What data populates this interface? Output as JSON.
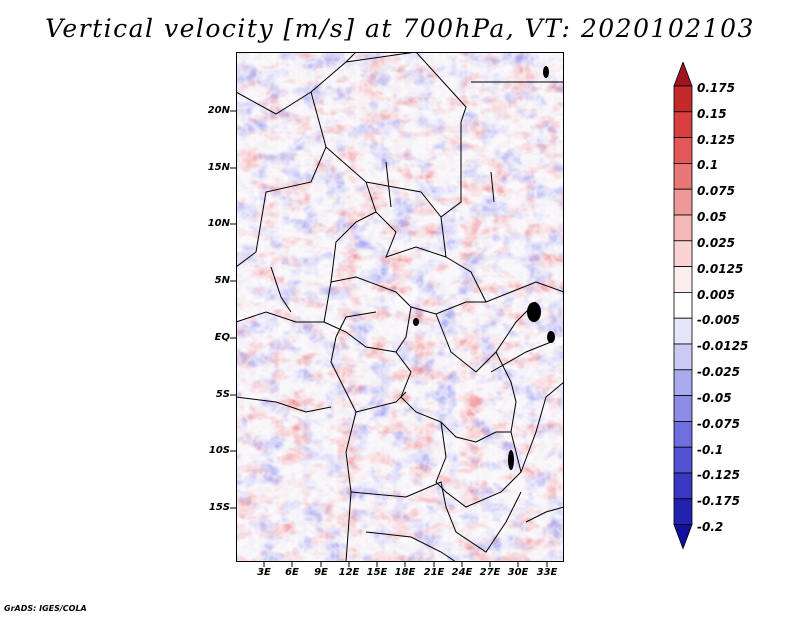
{
  "title": "Vertical velocity [m/s] at 700hPa, VT: 2020102103",
  "credit": "GrADS: IGES/COLA",
  "map": {
    "lat_range": [
      -20,
      24.5
    ],
    "lon_range": [
      0.5,
      35
    ],
    "lat_ticks": [
      "20N",
      "15N",
      "10N",
      "5N",
      "EQ",
      "5S",
      "10S",
      "15S"
    ],
    "lon_ticks": [
      "3E",
      "6E",
      "9E",
      "12E",
      "15E",
      "18E",
      "21E",
      "24E",
      "27E",
      "30E",
      "33E"
    ]
  },
  "colorbar": {
    "labels": [
      "0.175",
      "0.15",
      "0.125",
      "0.1",
      "0.075",
      "0.05",
      "0.025",
      "0.0125",
      "0.005",
      "-0.005",
      "-0.0125",
      "-0.025",
      "-0.05",
      "-0.075",
      "-0.1",
      "-0.125",
      "-0.175",
      "-0.2"
    ],
    "colors": [
      "#a0141e",
      "#c42a2a",
      "#d84040",
      "#e25858",
      "#e87878",
      "#ef9898",
      "#f5b8b8",
      "#fad4d4",
      "#fdeeee",
      "#ffffff",
      "#e6e6fb",
      "#cacaf5",
      "#aaaaee",
      "#8c8ce6",
      "#6e6ede",
      "#5252d2",
      "#3838c2",
      "#2222b0",
      "#1010a0"
    ]
  }
}
